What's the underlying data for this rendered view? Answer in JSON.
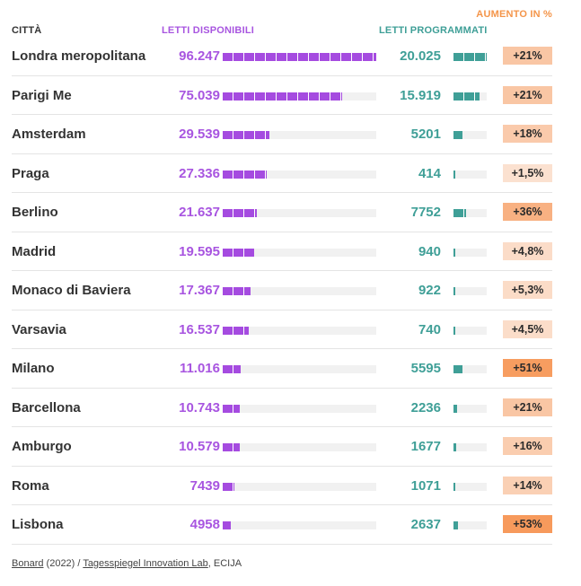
{
  "headers": {
    "city": "CITTÀ",
    "available": "LETTI DISPONIBILI",
    "planned": "LETTI PROGRAMMATI",
    "increase": "AUMENTO IN %"
  },
  "colors": {
    "available": "#a54be0",
    "planned": "#3f9f97",
    "increase_low": "#fbe3d3",
    "increase_high": "#f79a5c"
  },
  "source": {
    "link1": "Bonard",
    "text1": " (2022) / ",
    "link2": "Tagesspiegel Innovation Lab",
    "text2": ", ECIJA"
  },
  "chart_data": {
    "type": "table",
    "columns": [
      "Città",
      "Letti disponibili",
      "Letti programmati",
      "Aumento in %"
    ],
    "available_max": 96247,
    "planned_max": 20025,
    "rows": [
      {
        "city": "Londra meropolitana",
        "available": 96247,
        "available_label": "96.247",
        "planned": 20025,
        "planned_label": "20.025",
        "increase": 21,
        "increase_label": "+21%"
      },
      {
        "city": "Parigi Me",
        "available": 75039,
        "available_label": "75.039",
        "planned": 15919,
        "planned_label": "15.919",
        "increase": 21,
        "increase_label": "+21%"
      },
      {
        "city": "Amsterdam",
        "available": 29539,
        "available_label": "29.539",
        "planned": 5201,
        "planned_label": "5201",
        "increase": 18,
        "increase_label": "+18%"
      },
      {
        "city": "Praga",
        "available": 27336,
        "available_label": "27.336",
        "planned": 414,
        "planned_label": "414",
        "increase": 1.5,
        "increase_label": "+1,5%"
      },
      {
        "city": "Berlino",
        "available": 21637,
        "available_label": "21.637",
        "planned": 7752,
        "planned_label": "7752",
        "increase": 36,
        "increase_label": "+36%"
      },
      {
        "city": "Madrid",
        "available": 19595,
        "available_label": "19.595",
        "planned": 940,
        "planned_label": "940",
        "increase": 4.8,
        "increase_label": "+4,8%"
      },
      {
        "city": "Monaco di Baviera",
        "available": 17367,
        "available_label": "17.367",
        "planned": 922,
        "planned_label": "922",
        "increase": 5.3,
        "increase_label": "+5,3%"
      },
      {
        "city": "Varsavia",
        "available": 16537,
        "available_label": "16.537",
        "planned": 740,
        "planned_label": "740",
        "increase": 4.5,
        "increase_label": "+4,5%"
      },
      {
        "city": "Milano",
        "available": 11016,
        "available_label": "11.016",
        "planned": 5595,
        "planned_label": "5595",
        "increase": 51,
        "increase_label": "+51%"
      },
      {
        "city": "Barcellona",
        "available": 10743,
        "available_label": "10.743",
        "planned": 2236,
        "planned_label": "2236",
        "increase": 21,
        "increase_label": "+21%"
      },
      {
        "city": "Amburgo",
        "available": 10579,
        "available_label": "10.579",
        "planned": 1677,
        "planned_label": "1677",
        "increase": 16,
        "increase_label": "+16%"
      },
      {
        "city": "Roma",
        "available": 7439,
        "available_label": "7439",
        "planned": 1071,
        "planned_label": "1071",
        "increase": 14,
        "increase_label": "+14%"
      },
      {
        "city": "Lisbona",
        "available": 4958,
        "available_label": "4958",
        "planned": 2637,
        "planned_label": "2637",
        "increase": 53,
        "increase_label": "+53%"
      }
    ]
  }
}
